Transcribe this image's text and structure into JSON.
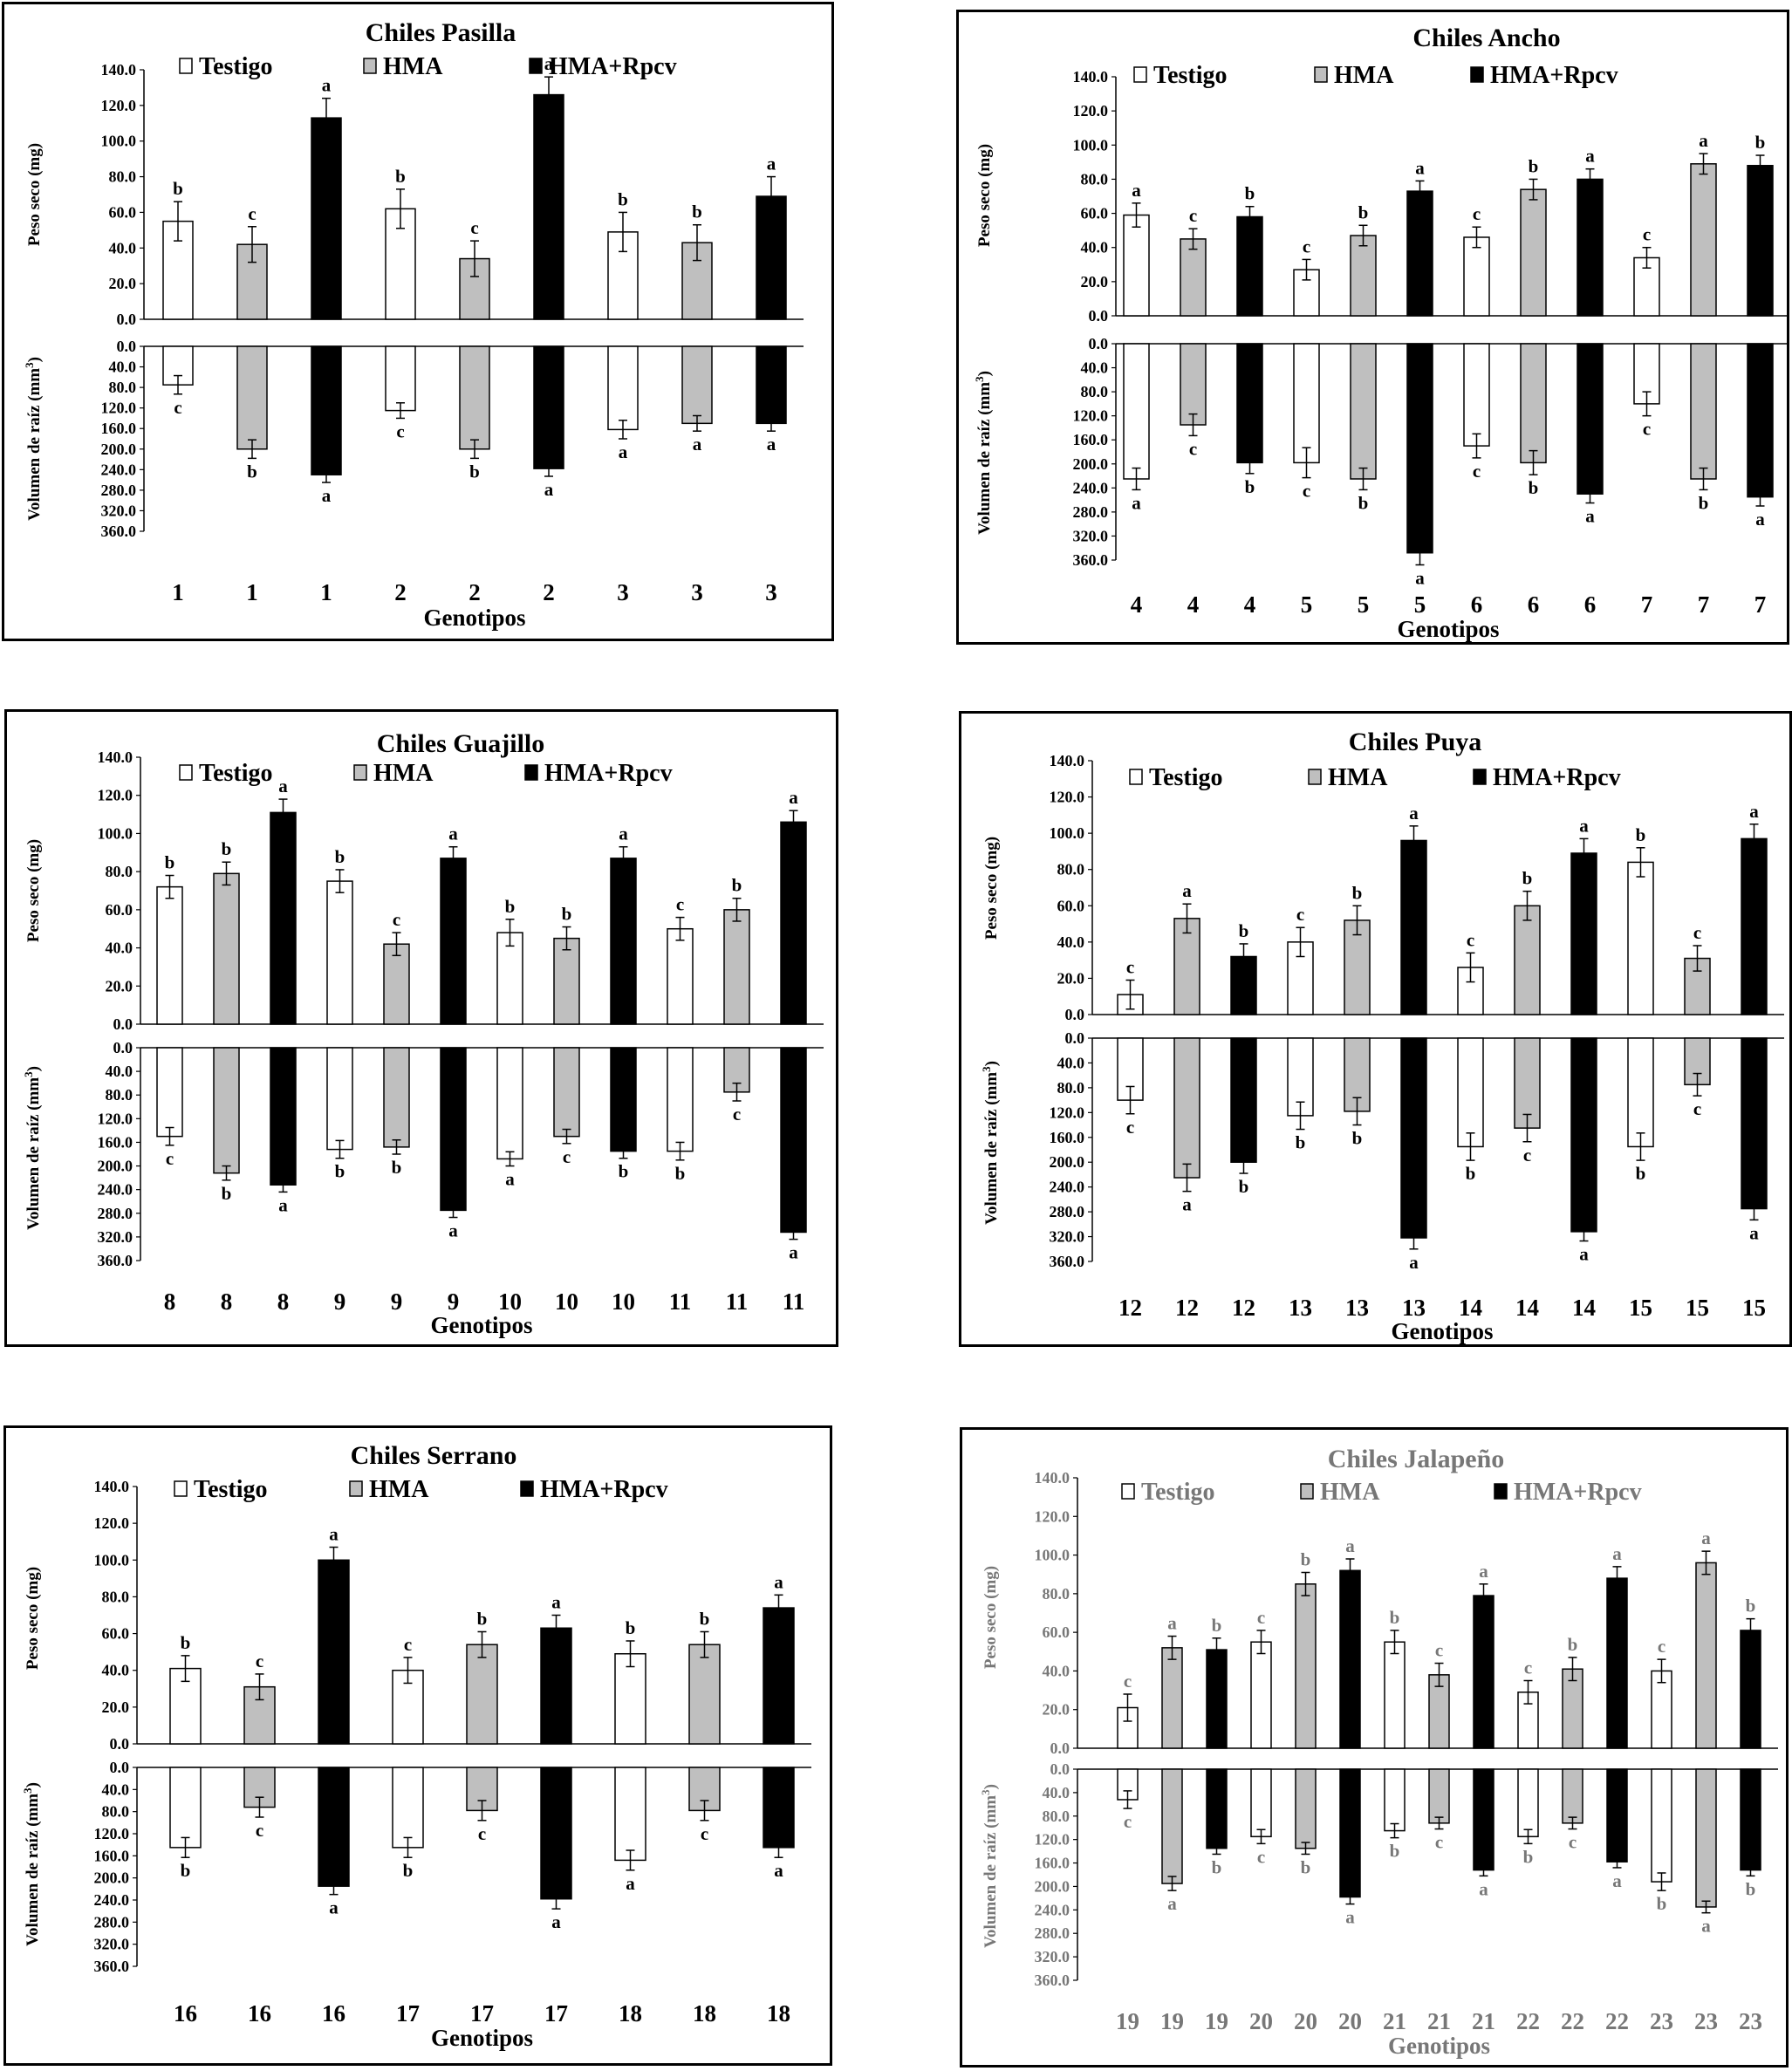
{
  "figure": {
    "treatments": [
      "Testigo",
      "HMA",
      "HMA+Rpcv"
    ],
    "colors": {
      "Testigo": "#ffffff",
      "HMA": "#bfbfbf",
      "HMA+Rpcv": "#000000",
      "Jalapeno_text": "#777777"
    },
    "xlabel": "Genotipos",
    "ylabel_top": "Peso seco (mg)",
    "ylabel_bottom_prefix": "Volumen de raíz (mm",
    "ylabel_bottom_sup": "3",
    "ylabel_bottom_suffix": ")"
  },
  "chart_data": [
    {
      "type": "bar",
      "title": "Chiles Pasilla",
      "top_ticks": [
        "140.0",
        "120.0",
        "100.0",
        "80.0",
        "60.0",
        "40.0",
        "20.0",
        "0.0"
      ],
      "bottom_ticks": [
        "0.0",
        "40.0",
        "80.0",
        "120.0",
        "160.0",
        "200.0",
        "240.0",
        "280.0",
        "320.0",
        "360.0"
      ],
      "top_ylim": [
        0,
        140
      ],
      "bottom_ylim": [
        0,
        360
      ],
      "categories": [
        "1",
        "1",
        "1",
        "2",
        "2",
        "2",
        "3",
        "3",
        "3"
      ],
      "treatment": [
        "Testigo",
        "HMA",
        "HMA+Rpcv",
        "Testigo",
        "HMA",
        "HMA+Rpcv",
        "Testigo",
        "HMA",
        "HMA+Rpcv"
      ],
      "peso_seco": [
        55,
        42,
        113,
        62,
        34,
        126,
        49,
        43,
        69
      ],
      "peso_seco_err": [
        11,
        10,
        11,
        11,
        10,
        10,
        11,
        10,
        11
      ],
      "peso_seco_sig": [
        "b",
        "c",
        "a",
        "b",
        "c",
        "a",
        "b",
        "b",
        "a"
      ],
      "volumen_raiz": [
        75,
        200,
        250,
        125,
        200,
        238,
        162,
        150,
        150
      ],
      "volumen_raiz_err": [
        18,
        18,
        15,
        15,
        18,
        15,
        18,
        15,
        15
      ],
      "volumen_raiz_sig": [
        "c",
        "b",
        "a",
        "c",
        "b",
        "a",
        "a",
        "a",
        "a"
      ]
    },
    {
      "type": "bar",
      "title": "Chiles Ancho",
      "top_ticks": [
        "140.0",
        "120.0",
        "100.0",
        "80.0",
        "60.0",
        "40.0",
        "20.0",
        "0.0"
      ],
      "bottom_ticks": [
        "0.0",
        "40.0",
        "80.0",
        "120.0",
        "160.0",
        "200.0",
        "240.0",
        "280.0",
        "320.0",
        "360.0"
      ],
      "top_ylim": [
        0,
        140
      ],
      "bottom_ylim": [
        0,
        360
      ],
      "categories": [
        "4",
        "4",
        "4",
        "5",
        "5",
        "5",
        "6",
        "6",
        "6",
        "7",
        "7",
        "7"
      ],
      "treatment": [
        "Testigo",
        "HMA",
        "HMA+Rpcv",
        "Testigo",
        "HMA",
        "HMA+Rpcv",
        "Testigo",
        "HMA",
        "HMA+Rpcv",
        "Testigo",
        "HMA",
        "HMA+Rpcv"
      ],
      "peso_seco": [
        59,
        45,
        58,
        27,
        47,
        73,
        46,
        74,
        80,
        34,
        89,
        88
      ],
      "peso_seco_err": [
        7,
        6,
        6,
        6,
        6,
        6,
        6,
        6,
        6,
        6,
        6,
        6
      ],
      "peso_seco_sig": [
        "a",
        "c",
        "b",
        "c",
        "b",
        "a",
        "c",
        "b",
        "a",
        "c",
        "a",
        "b"
      ],
      "volumen_raiz": [
        225,
        135,
        198,
        198,
        225,
        348,
        170,
        198,
        250,
        100,
        225,
        255
      ],
      "volumen_raiz_err": [
        18,
        18,
        18,
        25,
        18,
        20,
        20,
        20,
        15,
        20,
        18,
        15
      ],
      "volumen_raiz_sig": [
        "a",
        "c",
        "b",
        "c",
        "b",
        "a",
        "c",
        "b",
        "a",
        "c",
        "b",
        "a"
      ]
    },
    {
      "type": "bar",
      "title": "Chiles Guajillo",
      "top_ticks": [
        "140.0",
        "120.0",
        "100.0",
        "80.0",
        "60.0",
        "40.0",
        "20.0",
        "0.0"
      ],
      "bottom_ticks": [
        "0.0",
        "40.0",
        "80.0",
        "120.0",
        "160.0",
        "200.0",
        "240.0",
        "280.0",
        "320.0",
        "360.0"
      ],
      "top_ylim": [
        0,
        140
      ],
      "bottom_ylim": [
        0,
        360
      ],
      "categories": [
        "8",
        "8",
        "8",
        "9",
        "9",
        "9",
        "10",
        "10",
        "10",
        "11",
        "11",
        "11"
      ],
      "treatment": [
        "Testigo",
        "HMA",
        "HMA+Rpcv",
        "Testigo",
        "HMA",
        "HMA+Rpcv",
        "Testigo",
        "HMA",
        "HMA+Rpcv",
        "Testigo",
        "HMA",
        "HMA+Rpcv"
      ],
      "peso_seco": [
        72,
        79,
        111,
        75,
        42,
        87,
        48,
        45,
        87,
        50,
        60,
        106
      ],
      "peso_seco_err": [
        6,
        6,
        7,
        6,
        6,
        6,
        7,
        6,
        6,
        6,
        6,
        6
      ],
      "peso_seco_sig": [
        "b",
        "b",
        "a",
        "b",
        "c",
        "a",
        "b",
        "b",
        "a",
        "c",
        "b",
        "a"
      ],
      "volumen_raiz": [
        150,
        212,
        232,
        172,
        168,
        275,
        188,
        150,
        175,
        175,
        75,
        312
      ],
      "volumen_raiz_err": [
        15,
        12,
        12,
        15,
        12,
        12,
        12,
        12,
        12,
        15,
        15,
        12
      ],
      "volumen_raiz_sig": [
        "c",
        "b",
        "a",
        "b",
        "b",
        "a",
        "a",
        "c",
        "b",
        "b",
        "c",
        "a"
      ]
    },
    {
      "type": "bar",
      "title": "Chiles Puya",
      "top_ticks": [
        "140.0",
        "120.0",
        "100.0",
        "80.0",
        "60.0",
        "40.0",
        "20.0",
        "0.0"
      ],
      "bottom_ticks": [
        "0.0",
        "40.0",
        "80.0",
        "120.0",
        "160.0",
        "200.0",
        "240.0",
        "280.0",
        "320.0",
        "360.0"
      ],
      "top_ylim": [
        0,
        140
      ],
      "bottom_ylim": [
        0,
        360
      ],
      "categories": [
        "12",
        "12",
        "12",
        "13",
        "13",
        "13",
        "14",
        "14",
        "14",
        "15",
        "15",
        "15"
      ],
      "treatment": [
        "Testigo",
        "HMA",
        "HMA+Rpcv",
        "Testigo",
        "HMA",
        "HMA+Rpcv",
        "Testigo",
        "HMA",
        "HMA+Rpcv",
        "Testigo",
        "HMA",
        "HMA+Rpcv"
      ],
      "peso_seco": [
        11,
        53,
        32,
        40,
        52,
        96,
        26,
        60,
        89,
        84,
        31,
        97
      ],
      "peso_seco_err": [
        8,
        8,
        7,
        8,
        8,
        8,
        8,
        8,
        8,
        8,
        7,
        8
      ],
      "peso_seco_sig": [
        "c",
        "a",
        "b",
        "c",
        "b",
        "a",
        "c",
        "b",
        "a",
        "b",
        "c",
        "a"
      ],
      "volumen_raiz": [
        100,
        225,
        200,
        125,
        118,
        322,
        175,
        145,
        312,
        175,
        75,
        275
      ],
      "volumen_raiz_err": [
        22,
        22,
        18,
        22,
        22,
        18,
        22,
        22,
        15,
        22,
        18,
        18
      ],
      "volumen_raiz_sig": [
        "c",
        "a",
        "b",
        "b",
        "b",
        "a",
        "b",
        "c",
        "a",
        "b",
        "c",
        "a"
      ]
    },
    {
      "type": "bar",
      "title": "Chiles Serrano",
      "top_ticks": [
        "140.0",
        "120.0",
        "100.0",
        "80.0",
        "60.0",
        "40.0",
        "20.0",
        "0.0"
      ],
      "bottom_ticks": [
        "0.0",
        "40.0",
        "80.0",
        "120.0",
        "160.0",
        "200.0",
        "240.0",
        "280.0",
        "320.0",
        "360.0"
      ],
      "top_ylim": [
        0,
        140
      ],
      "bottom_ylim": [
        0,
        360
      ],
      "categories": [
        "16",
        "16",
        "16",
        "17",
        "17",
        "17",
        "18",
        "18",
        "18"
      ],
      "treatment": [
        "Testigo",
        "HMA",
        "HMA+Rpcv",
        "Testigo",
        "HMA",
        "HMA+Rpcv",
        "Testigo",
        "HMA",
        "HMA+Rpcv"
      ],
      "peso_seco": [
        41,
        31,
        100,
        40,
        54,
        63,
        49,
        54,
        74
      ],
      "peso_seco_err": [
        7,
        7,
        7,
        7,
        7,
        7,
        7,
        7,
        7
      ],
      "peso_seco_sig": [
        "b",
        "c",
        "a",
        "c",
        "b",
        "a",
        "b",
        "b",
        "a"
      ],
      "volumen_raiz": [
        145,
        72,
        215,
        145,
        78,
        238,
        168,
        78,
        145
      ],
      "volumen_raiz_err": [
        18,
        18,
        15,
        18,
        18,
        18,
        18,
        18,
        18
      ],
      "volumen_raiz_sig": [
        "b",
        "c",
        "a",
        "b",
        "c",
        "a",
        "a",
        "c",
        "a"
      ]
    },
    {
      "type": "bar",
      "title": "Chiles Jalapeño",
      "top_ticks": [
        "140.0",
        "120.0",
        "100.0",
        "80.0",
        "60.0",
        "40.0",
        "20.0",
        "0.0"
      ],
      "bottom_ticks": [
        "0.0",
        "40.0",
        "80.0",
        "120.0",
        "160.0",
        "200.0",
        "240.0",
        "280.0",
        "320.0",
        "360.0"
      ],
      "top_ylim": [
        0,
        140
      ],
      "bottom_ylim": [
        0,
        360
      ],
      "categories": [
        "19",
        "19",
        "19",
        "20",
        "20",
        "20",
        "21",
        "21",
        "21",
        "22",
        "22",
        "22",
        "23",
        "23",
        "23"
      ],
      "treatment": [
        "Testigo",
        "HMA",
        "HMA+Rpcv",
        "Testigo",
        "HMA",
        "HMA+Rpcv",
        "Testigo",
        "HMA",
        "HMA+Rpcv",
        "Testigo",
        "HMA",
        "HMA+Rpcv",
        "Testigo",
        "HMA",
        "HMA+Rpcv"
      ],
      "peso_seco": [
        21,
        52,
        51,
        55,
        85,
        92,
        55,
        38,
        79,
        29,
        41,
        88,
        40,
        96,
        61
      ],
      "peso_seco_err": [
        7,
        6,
        6,
        6,
        6,
        6,
        6,
        6,
        6,
        6,
        6,
        6,
        6,
        6,
        6
      ],
      "peso_seco_sig": [
        "c",
        "a",
        "b",
        "c",
        "b",
        "a",
        "b",
        "c",
        "a",
        "c",
        "b",
        "a",
        "c",
        "a",
        "b"
      ],
      "volumen_raiz": [
        52,
        195,
        135,
        115,
        135,
        218,
        105,
        92,
        172,
        115,
        92,
        158,
        192,
        235,
        172
      ],
      "volumen_raiz_err": [
        15,
        12,
        10,
        12,
        10,
        12,
        12,
        10,
        10,
        12,
        10,
        10,
        15,
        10,
        10
      ],
      "volumen_raiz_sig": [
        "c",
        "a",
        "b",
        "c",
        "b",
        "a",
        "b",
        "c",
        "a",
        "b",
        "c",
        "a",
        "b",
        "a",
        "b"
      ]
    }
  ]
}
